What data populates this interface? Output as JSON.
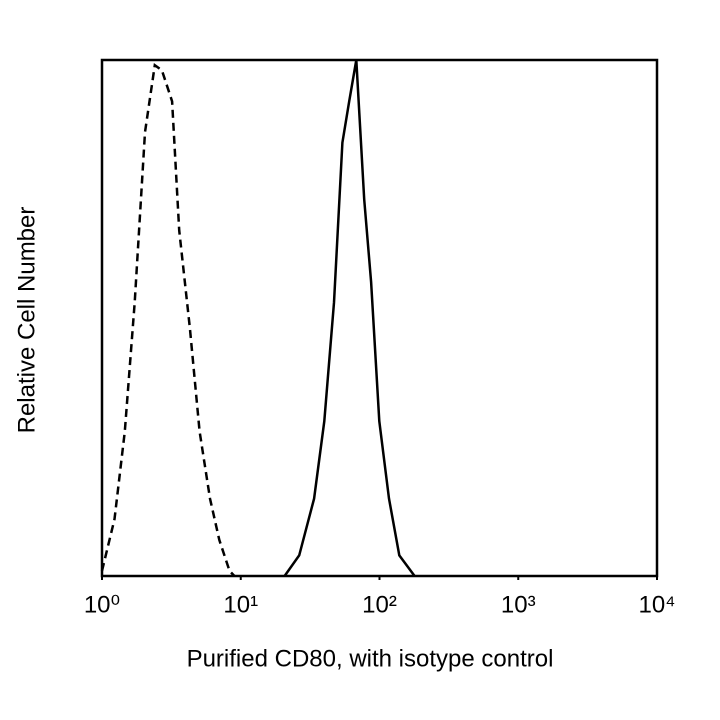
{
  "chart_data": {
    "type": "line",
    "log_x": true,
    "xlabel": "Purified CD80, with isotype control",
    "ylabel": "Relative Cell Number",
    "xlim": [
      1,
      10000
    ],
    "xticks": [
      {
        "value": 1,
        "label": "10⁰"
      },
      {
        "value": 10,
        "label": "10¹"
      },
      {
        "value": 100,
        "label": "10²"
      },
      {
        "value": 1000,
        "label": "10³"
      },
      {
        "value": 10000,
        "label": "10⁴"
      }
    ],
    "ylim": [
      0,
      100
    ],
    "series": [
      {
        "color": "#000000",
        "dashed": true,
        "x": [
          1.0,
          1.23,
          1.46,
          1.72,
          2.04,
          2.4,
          2.7,
          3.2,
          3.6,
          4.3,
          5.05,
          6.0,
          7.0,
          8.3,
          9.0
        ],
        "values": [
          1,
          11,
          28,
          53,
          86,
          99,
          98,
          92,
          67,
          48,
          28,
          15,
          7,
          1,
          0
        ]
      },
      {
        "color": "#000000",
        "dashed": false,
        "x": [
          20.7,
          26.4,
          33.8,
          40,
          47,
          54,
          60.5,
          68,
          77.6,
          87,
          99.6,
          117,
          139,
          179
        ],
        "values": [
          0,
          4,
          15,
          30,
          53,
          84,
          92,
          100,
          73,
          57,
          30,
          15,
          4,
          0
        ]
      }
    ]
  }
}
